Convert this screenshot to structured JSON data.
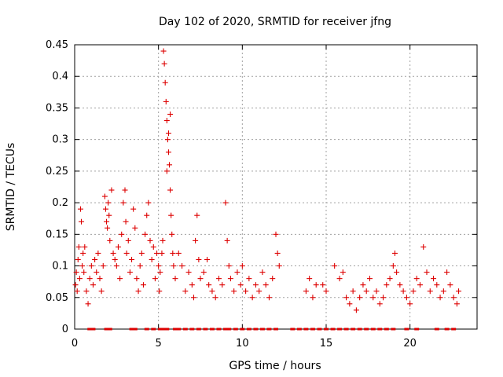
{
  "chart_data": {
    "type": "scatter",
    "title": "Day 102 of 2020, SRMTID for receiver jfng",
    "xlabel": "GPS time / hours",
    "ylabel": "SRMTID / TECUs",
    "xlim": [
      0,
      24
    ],
    "ylim": [
      0,
      0.45
    ],
    "xticks": [
      0,
      5,
      10,
      15,
      20
    ],
    "xtick_labels": [
      "0",
      "5",
      "10",
      "15",
      "20"
    ],
    "yticks": [
      0,
      0.05,
      0.1,
      0.15,
      0.2,
      0.25,
      0.3,
      0.35,
      0.4,
      0.45
    ],
    "ytick_labels": [
      "0",
      "0.05",
      "0.1",
      "0.15",
      "0.2",
      "0.25",
      "0.3",
      "0.35",
      "0.4",
      "0.45"
    ],
    "grid": true,
    "marker": "+",
    "series_color": "#dd0000",
    "series": [
      {
        "name": "SRMTID",
        "points": [
          [
            0.05,
            0.07
          ],
          [
            0.1,
            0.09
          ],
          [
            0.15,
            0.06
          ],
          [
            0.2,
            0.11
          ],
          [
            0.25,
            0.13
          ],
          [
            0.3,
            0.08
          ],
          [
            0.35,
            0.19
          ],
          [
            0.4,
            0.17
          ],
          [
            0.45,
            0.1
          ],
          [
            0.5,
            0.12
          ],
          [
            0.55,
            0.09
          ],
          [
            0.6,
            0.13
          ],
          [
            0.7,
            0.06
          ],
          [
            0.8,
            0.04
          ],
          [
            0.9,
            0.08
          ],
          [
            1.0,
            0.1
          ],
          [
            1.1,
            0.07
          ],
          [
            1.2,
            0.11
          ],
          [
            1.3,
            0.09
          ],
          [
            1.4,
            0.12
          ],
          [
            1.5,
            0.08
          ],
          [
            1.6,
            0.06
          ],
          [
            1.7,
            0.1
          ],
          [
            1.8,
            0.21
          ],
          [
            1.85,
            0.19
          ],
          [
            1.9,
            0.17
          ],
          [
            1.95,
            0.16
          ],
          [
            2.0,
            0.2
          ],
          [
            2.05,
            0.18
          ],
          [
            2.1,
            0.14
          ],
          [
            2.2,
            0.22
          ],
          [
            2.3,
            0.12
          ],
          [
            2.4,
            0.11
          ],
          [
            2.5,
            0.1
          ],
          [
            2.6,
            0.13
          ],
          [
            2.7,
            0.08
          ],
          [
            2.8,
            0.15
          ],
          [
            2.9,
            0.2
          ],
          [
            3.0,
            0.22
          ],
          [
            3.05,
            0.17
          ],
          [
            3.1,
            0.12
          ],
          [
            3.2,
            0.14
          ],
          [
            3.3,
            0.09
          ],
          [
            3.4,
            0.11
          ],
          [
            3.5,
            0.19
          ],
          [
            3.6,
            0.16
          ],
          [
            3.7,
            0.08
          ],
          [
            3.8,
            0.06
          ],
          [
            3.9,
            0.1
          ],
          [
            4.0,
            0.12
          ],
          [
            4.1,
            0.07
          ],
          [
            4.2,
            0.15
          ],
          [
            4.3,
            0.18
          ],
          [
            4.4,
            0.2
          ],
          [
            4.5,
            0.14
          ],
          [
            4.6,
            0.11
          ],
          [
            4.7,
            0.13
          ],
          [
            4.8,
            0.08
          ],
          [
            4.9,
            0.12
          ],
          [
            5.0,
            0.1
          ],
          [
            5.05,
            0.06
          ],
          [
            5.1,
            0.09
          ],
          [
            5.2,
            0.12
          ],
          [
            5.25,
            0.14
          ],
          [
            5.3,
            0.44
          ],
          [
            5.35,
            0.42
          ],
          [
            5.4,
            0.39
          ],
          [
            5.45,
            0.36
          ],
          [
            5.5,
            0.33
          ],
          [
            5.55,
            0.3
          ],
          [
            5.6,
            0.28
          ],
          [
            5.65,
            0.26
          ],
          [
            5.7,
            0.22
          ],
          [
            5.75,
            0.18
          ],
          [
            5.8,
            0.15
          ],
          [
            5.85,
            0.12
          ],
          [
            5.9,
            0.1
          ],
          [
            5.7,
            0.34
          ],
          [
            5.6,
            0.31
          ],
          [
            5.5,
            0.25
          ],
          [
            6.0,
            0.08
          ],
          [
            6.2,
            0.12
          ],
          [
            6.4,
            0.1
          ],
          [
            6.6,
            0.06
          ],
          [
            6.8,
            0.09
          ],
          [
            7.0,
            0.07
          ],
          [
            7.1,
            0.05
          ],
          [
            7.2,
            0.14
          ],
          [
            7.3,
            0.18
          ],
          [
            7.4,
            0.11
          ],
          [
            7.5,
            0.08
          ],
          [
            7.7,
            0.09
          ],
          [
            7.9,
            0.11
          ],
          [
            8.0,
            0.07
          ],
          [
            8.2,
            0.06
          ],
          [
            8.4,
            0.05
          ],
          [
            8.6,
            0.08
          ],
          [
            8.8,
            0.07
          ],
          [
            9.0,
            0.2
          ],
          [
            9.1,
            0.14
          ],
          [
            9.2,
            0.1
          ],
          [
            9.3,
            0.08
          ],
          [
            9.5,
            0.06
          ],
          [
            9.7,
            0.09
          ],
          [
            9.9,
            0.07
          ],
          [
            10.0,
            0.1
          ],
          [
            10.2,
            0.06
          ],
          [
            10.4,
            0.08
          ],
          [
            10.6,
            0.05
          ],
          [
            10.8,
            0.07
          ],
          [
            11.0,
            0.06
          ],
          [
            11.2,
            0.09
          ],
          [
            11.4,
            0.07
          ],
          [
            11.6,
            0.05
          ],
          [
            11.8,
            0.08
          ],
          [
            12.0,
            0.15
          ],
          [
            12.1,
            0.12
          ],
          [
            12.2,
            0.1
          ],
          [
            13.8,
            0.06
          ],
          [
            14.0,
            0.08
          ],
          [
            14.2,
            0.05
          ],
          [
            14.4,
            0.07
          ],
          [
            14.8,
            0.07
          ],
          [
            15.0,
            0.06
          ],
          [
            15.5,
            0.1
          ],
          [
            15.8,
            0.08
          ],
          [
            16.0,
            0.09
          ],
          [
            16.2,
            0.05
          ],
          [
            16.4,
            0.04
          ],
          [
            16.6,
            0.06
          ],
          [
            16.8,
            0.03
          ],
          [
            17.0,
            0.05
          ],
          [
            17.2,
            0.07
          ],
          [
            17.4,
            0.06
          ],
          [
            17.6,
            0.08
          ],
          [
            17.8,
            0.05
          ],
          [
            18.0,
            0.06
          ],
          [
            18.2,
            0.04
          ],
          [
            18.4,
            0.05
          ],
          [
            18.6,
            0.07
          ],
          [
            18.8,
            0.08
          ],
          [
            19.0,
            0.1
          ],
          [
            19.1,
            0.12
          ],
          [
            19.2,
            0.09
          ],
          [
            19.4,
            0.07
          ],
          [
            19.6,
            0.06
          ],
          [
            19.8,
            0.05
          ],
          [
            20.0,
            0.04
          ],
          [
            20.2,
            0.06
          ],
          [
            20.4,
            0.08
          ],
          [
            20.6,
            0.07
          ],
          [
            20.8,
            0.13
          ],
          [
            21.0,
            0.09
          ],
          [
            21.2,
            0.06
          ],
          [
            21.4,
            0.08
          ],
          [
            21.6,
            0.07
          ],
          [
            21.8,
            0.05
          ],
          [
            22.0,
            0.06
          ],
          [
            22.2,
            0.09
          ],
          [
            22.4,
            0.07
          ],
          [
            22.6,
            0.05
          ],
          [
            22.8,
            0.04
          ],
          [
            22.9,
            0.06
          ]
        ]
      }
    ],
    "zero_line_points_x": [
      0.9,
      1.1,
      1.9,
      2.1,
      3.4,
      3.6,
      4.3,
      4.7,
      5.1,
      5.3,
      5.5,
      6.0,
      6.2,
      6.6,
      7.0,
      7.4,
      7.8,
      8.2,
      8.6,
      9.0,
      9.2,
      9.6,
      10.0,
      10.4,
      10.8,
      11.2,
      11.6,
      12.0,
      13.0,
      13.4,
      13.8,
      14.2,
      14.6,
      15.0,
      15.4,
      15.8,
      16.2,
      16.6,
      17.0,
      17.4,
      17.8,
      18.2,
      18.6,
      19.0,
      19.8,
      20.4,
      21.6,
      22.2,
      22.6
    ]
  }
}
